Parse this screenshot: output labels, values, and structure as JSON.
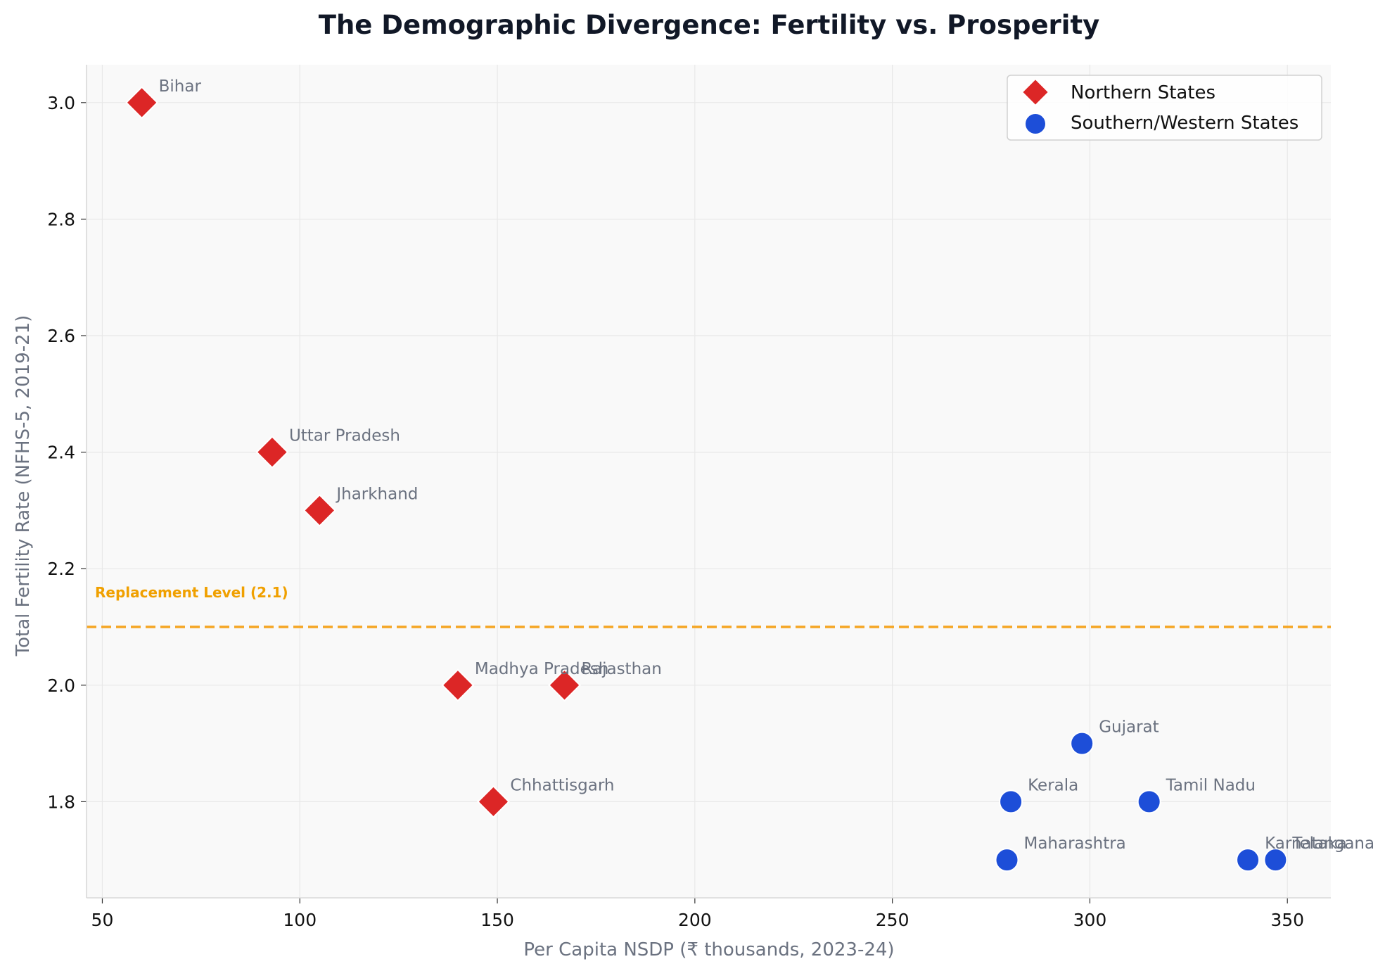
{
  "chart_data": {
    "type": "scatter",
    "title": "The Demographic Divergence: Fertility vs. Prosperity",
    "xlabel": "Per Capita NSDP (₹ thousands, 2023-24)",
    "ylabel": "Total Fertility Rate (NFHS-5, 2019-21)",
    "xlim": [
      46,
      361
    ],
    "ylim": [
      1.635,
      3.065
    ],
    "xticks": [
      "50",
      "100",
      "150",
      "200",
      "250",
      "300",
      "350"
    ],
    "yticks": [
      "1.8",
      "2.0",
      "2.2",
      "2.4",
      "2.6",
      "2.8",
      "3.0"
    ],
    "grid": true,
    "legend_position": "top-right",
    "reference_line": {
      "y": 2.1,
      "label": "Replacement Level (2.1)",
      "color": "#f5a623",
      "label_color": "#f0a000"
    },
    "series": [
      {
        "name": "Northern States",
        "marker": "diamond",
        "color": "#dc2626",
        "points": [
          {
            "label": "Bihar",
            "x": 60,
            "y": 3.0
          },
          {
            "label": "Uttar Pradesh",
            "x": 93,
            "y": 2.4
          },
          {
            "label": "Jharkhand",
            "x": 105,
            "y": 2.3
          },
          {
            "label": "Madhya Pradesh",
            "x": 140,
            "y": 2.0
          },
          {
            "label": "Rajasthan",
            "x": 167,
            "y": 2.0
          },
          {
            "label": "Chhattisgarh",
            "x": 149,
            "y": 1.8
          }
        ]
      },
      {
        "name": "Southern/Western States",
        "marker": "circle",
        "color": "#1d4ed8",
        "points": [
          {
            "label": "Gujarat",
            "x": 298,
            "y": 1.9
          },
          {
            "label": "Kerala",
            "x": 280,
            "y": 1.8
          },
          {
            "label": "Tamil Nadu",
            "x": 315,
            "y": 1.8
          },
          {
            "label": "Maharashtra",
            "x": 279,
            "y": 1.7
          },
          {
            "label": "Karnataka",
            "x": 340,
            "y": 1.7
          },
          {
            "label": "Telangana",
            "x": 347,
            "y": 1.7
          }
        ]
      }
    ]
  }
}
